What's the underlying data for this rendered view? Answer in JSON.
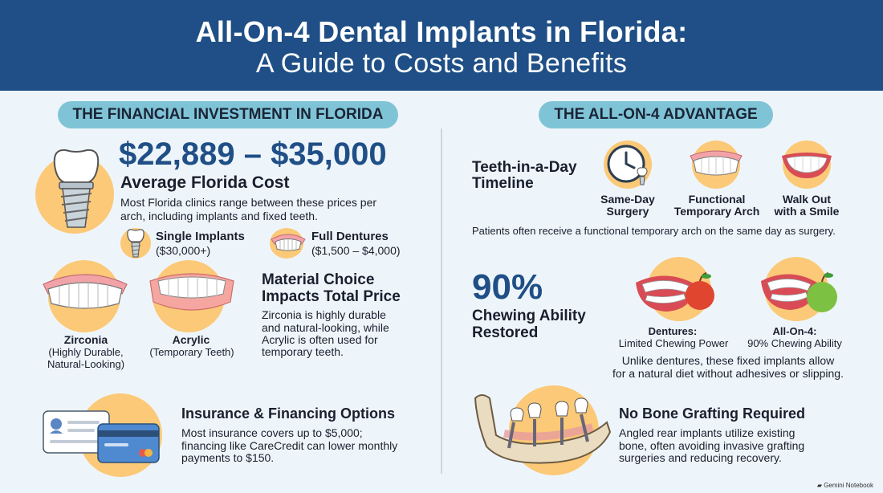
{
  "header": {
    "title": "All-On-4 Dental Implants in Florida:",
    "subtitle": "A Guide to Costs and Benefits"
  },
  "colors": {
    "header_bg": "#1f4f86",
    "pill_bg": "#7fc4d6",
    "accent_circle": "#fbc977",
    "big_number": "#1f4f86"
  },
  "left": {
    "section_label": "THE FINANCIAL INVESTMENT IN FLORIDA",
    "cost": {
      "range": "$22,889 – $35,000",
      "label": "Average Florida Cost",
      "desc_1": "Most Florida clinics range between these prices per",
      "desc_2": "arch, including implants and fixed teeth.",
      "icon": "implant-icon"
    },
    "single": {
      "title": "Single Implants",
      "price": "($30,000+)",
      "icon": "implant-icon"
    },
    "dentures": {
      "title": "Full Dentures",
      "price": "($1,500 – $4,000)",
      "icon": "denture-icon"
    },
    "zirconia": {
      "title": "Zirconia",
      "desc_1": "(Highly Durable,",
      "desc_2": "Natural-Looking)",
      "icon": "denture-icon"
    },
    "acrylic": {
      "title": "Acrylic",
      "desc": "(Temporary Teeth)",
      "icon": "denture-icon"
    },
    "material": {
      "title_1": "Material Choice",
      "title_2": "Impacts Total Price",
      "desc_1": "Zirconia is highly durable",
      "desc_2": "and natural-looking, while",
      "desc_3": "Acrylic is often used for",
      "desc_4": "temporary teeth."
    },
    "insurance": {
      "title": "Insurance & Financing Options",
      "desc_1": "Most insurance covers up to $5,000;",
      "desc_2": "financing like CareCredit can lower monthly",
      "desc_3": "payments to $150.",
      "icon": "credit-card-icon"
    }
  },
  "right": {
    "section_label": "THE ALL-ON-4 ADVANTAGE",
    "timeline": {
      "title_1": "Teeth-in-a-Day",
      "title_2": "Timeline",
      "items": [
        {
          "label_1": "Same-Day",
          "label_2": "Surgery",
          "icon": "clock-icon"
        },
        {
          "label_1": "Functional",
          "label_2": "Temporary Arch",
          "icon": "denture-icon"
        },
        {
          "label_1": "Walk Out",
          "label_2": "with a Smile",
          "icon": "smile-icon"
        }
      ],
      "note": "Patients often receive a functional temporary arch on the same day as surgery."
    },
    "chewing": {
      "percent": "90%",
      "title_1": "Chewing Ability",
      "title_2": "Restored",
      "dentures_title": "Dentures:",
      "dentures_desc": "Limited Chewing Power",
      "allon4_title": "All-On-4:",
      "allon4_desc": "90% Chewing Ability",
      "note_1": "Unlike dentures, these fixed implants allow",
      "note_2": "for a natural diet without adhesives or slipping.",
      "icon_1": "mouth-apple-icon",
      "icon_2": "mouth-apple-icon"
    },
    "bone": {
      "title": "No Bone Grafting Required",
      "desc_1": "Angled rear implants utilize existing",
      "desc_2": "bone, often avoiding invasive grafting",
      "desc_3": "surgeries and reducing recovery.",
      "icon": "jaw-implant-icon"
    }
  },
  "footer": {
    "brand": "Gemini Notebook"
  }
}
